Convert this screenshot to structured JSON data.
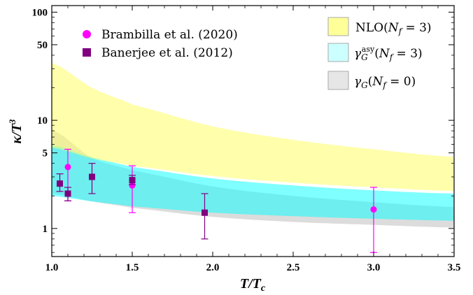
{
  "chart_data": {
    "type": "scatter",
    "xlabel": "T/T_c",
    "ylabel": "κ/T^3",
    "xlim": [
      1.0,
      3.5
    ],
    "ylim": [
      0.55,
      115
    ],
    "yscale": "log",
    "grid": false,
    "x_ticks": [
      "1.0",
      "1.5",
      "2.0",
      "2.5",
      "3.0",
      "3.5"
    ],
    "y_ticks": [
      "1",
      "5",
      "10",
      "50",
      "100"
    ],
    "legend_left": [
      {
        "label": "Brambilla et al. (2020)",
        "marker": "circle",
        "color": "#ff00ff"
      },
      {
        "label": "Banerjee et al.  (2012)",
        "marker": "square",
        "color": "#800080"
      }
    ],
    "legend_right": [
      {
        "label": "NLO(Nf = 3)",
        "color": "#ffff99"
      },
      {
        "label": "γG^asy(Nf = 3)",
        "color": "#ccffff"
      },
      {
        "label": "γG(Nf = 0)",
        "color": "#e6e6e6"
      }
    ],
    "bands": [
      {
        "name": "γG(Nf = 0)",
        "color": "#dcdcdc",
        "x": [
          1.0,
          1.25,
          1.5,
          2.0,
          2.5,
          3.0,
          3.5
        ],
        "lower": [
          2.1,
          1.78,
          1.55,
          1.28,
          1.15,
          1.08,
          1.02
        ],
        "upper": [
          8.2,
          4.5,
          3.45,
          2.45,
          2.0,
          1.75,
          1.58
        ]
      },
      {
        "name": "γG^asy(Nf = 3)",
        "color": "#00ffff",
        "opacity": 0.5,
        "x": [
          1.0,
          1.25,
          1.5,
          2.0,
          2.5,
          3.0,
          3.5
        ],
        "lower": [
          2.0,
          1.78,
          1.6,
          1.4,
          1.3,
          1.23,
          1.18
        ],
        "upper": [
          5.9,
          4.55,
          3.7,
          2.9,
          2.5,
          2.25,
          2.1
        ]
      },
      {
        "name": "NLO(Nf = 3)",
        "color": "#ffff66",
        "opacity": 0.55,
        "x": [
          1.0,
          1.25,
          1.5,
          2.0,
          2.5,
          3.0,
          3.5
        ],
        "lower": [
          5.6,
          4.45,
          3.8,
          3.05,
          2.65,
          2.4,
          2.22
        ],
        "upper": [
          34,
          20,
          14,
          8.8,
          6.6,
          5.4,
          4.6
        ]
      }
    ],
    "series": [
      {
        "name": "Brambilla et al. (2020)",
        "marker": "circle",
        "color": "#ff00ff",
        "points": [
          {
            "x": 1.1,
            "y": 3.7,
            "low": 1.8,
            "high": 5.4
          },
          {
            "x": 1.5,
            "y": 2.5,
            "low": 1.4,
            "high": 3.8
          },
          {
            "x": 3.0,
            "y": 1.5,
            "low": 0.6,
            "high": 2.4
          }
        ]
      },
      {
        "name": "Banerjee et al.  (2012)",
        "marker": "square",
        "color": "#800080",
        "points": [
          {
            "x": 1.05,
            "y": 2.6,
            "low": 2.2,
            "high": 3.2
          },
          {
            "x": 1.1,
            "y": 2.1,
            "low": 1.8,
            "high": 2.4
          },
          {
            "x": 1.25,
            "y": 3.0,
            "low": 2.1,
            "high": 4.0
          },
          {
            "x": 1.5,
            "y": 2.8,
            "low": 2.55,
            "high": 3.1
          },
          {
            "x": 1.95,
            "y": 1.4,
            "low": 0.8,
            "high": 2.1
          }
        ]
      }
    ]
  }
}
